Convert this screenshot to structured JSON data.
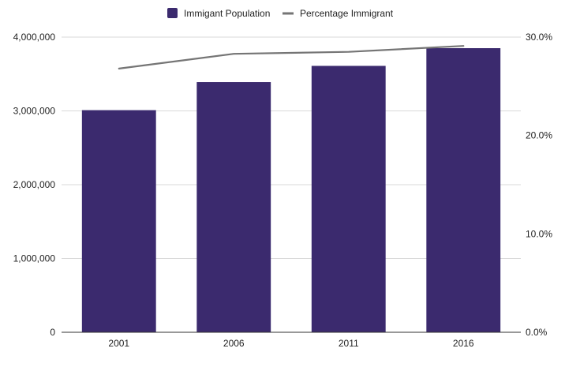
{
  "chart_data": {
    "type": "bar",
    "categories": [
      "2001",
      "2006",
      "2011",
      "2016"
    ],
    "series": [
      {
        "name": "Immigant Population",
        "type": "bar",
        "axis": "left",
        "values": [
          3010000,
          3390000,
          3610000,
          3850000
        ],
        "color": "#3b2a6e"
      },
      {
        "name": "Percentage Immigrant",
        "type": "line",
        "axis": "right",
        "values": [
          26.8,
          28.3,
          28.5,
          29.1
        ],
        "color": "#757575"
      }
    ],
    "y_left": {
      "min": 0,
      "max": 4000000,
      "ticks": [
        0,
        1000000,
        2000000,
        3000000,
        4000000
      ],
      "tick_labels": [
        "0",
        "1,000,000",
        "2,000,000",
        "3,000,000",
        "4,000,000"
      ]
    },
    "y_right": {
      "min": 0,
      "max": 30,
      "ticks": [
        0,
        10,
        20,
        30
      ],
      "tick_labels": [
        "0.0%",
        "10.0%",
        "20.0%",
        "30.0%"
      ]
    },
    "grid": true,
    "legend_position": "top-center",
    "title": "",
    "xlabel": "",
    "ylabel": ""
  }
}
